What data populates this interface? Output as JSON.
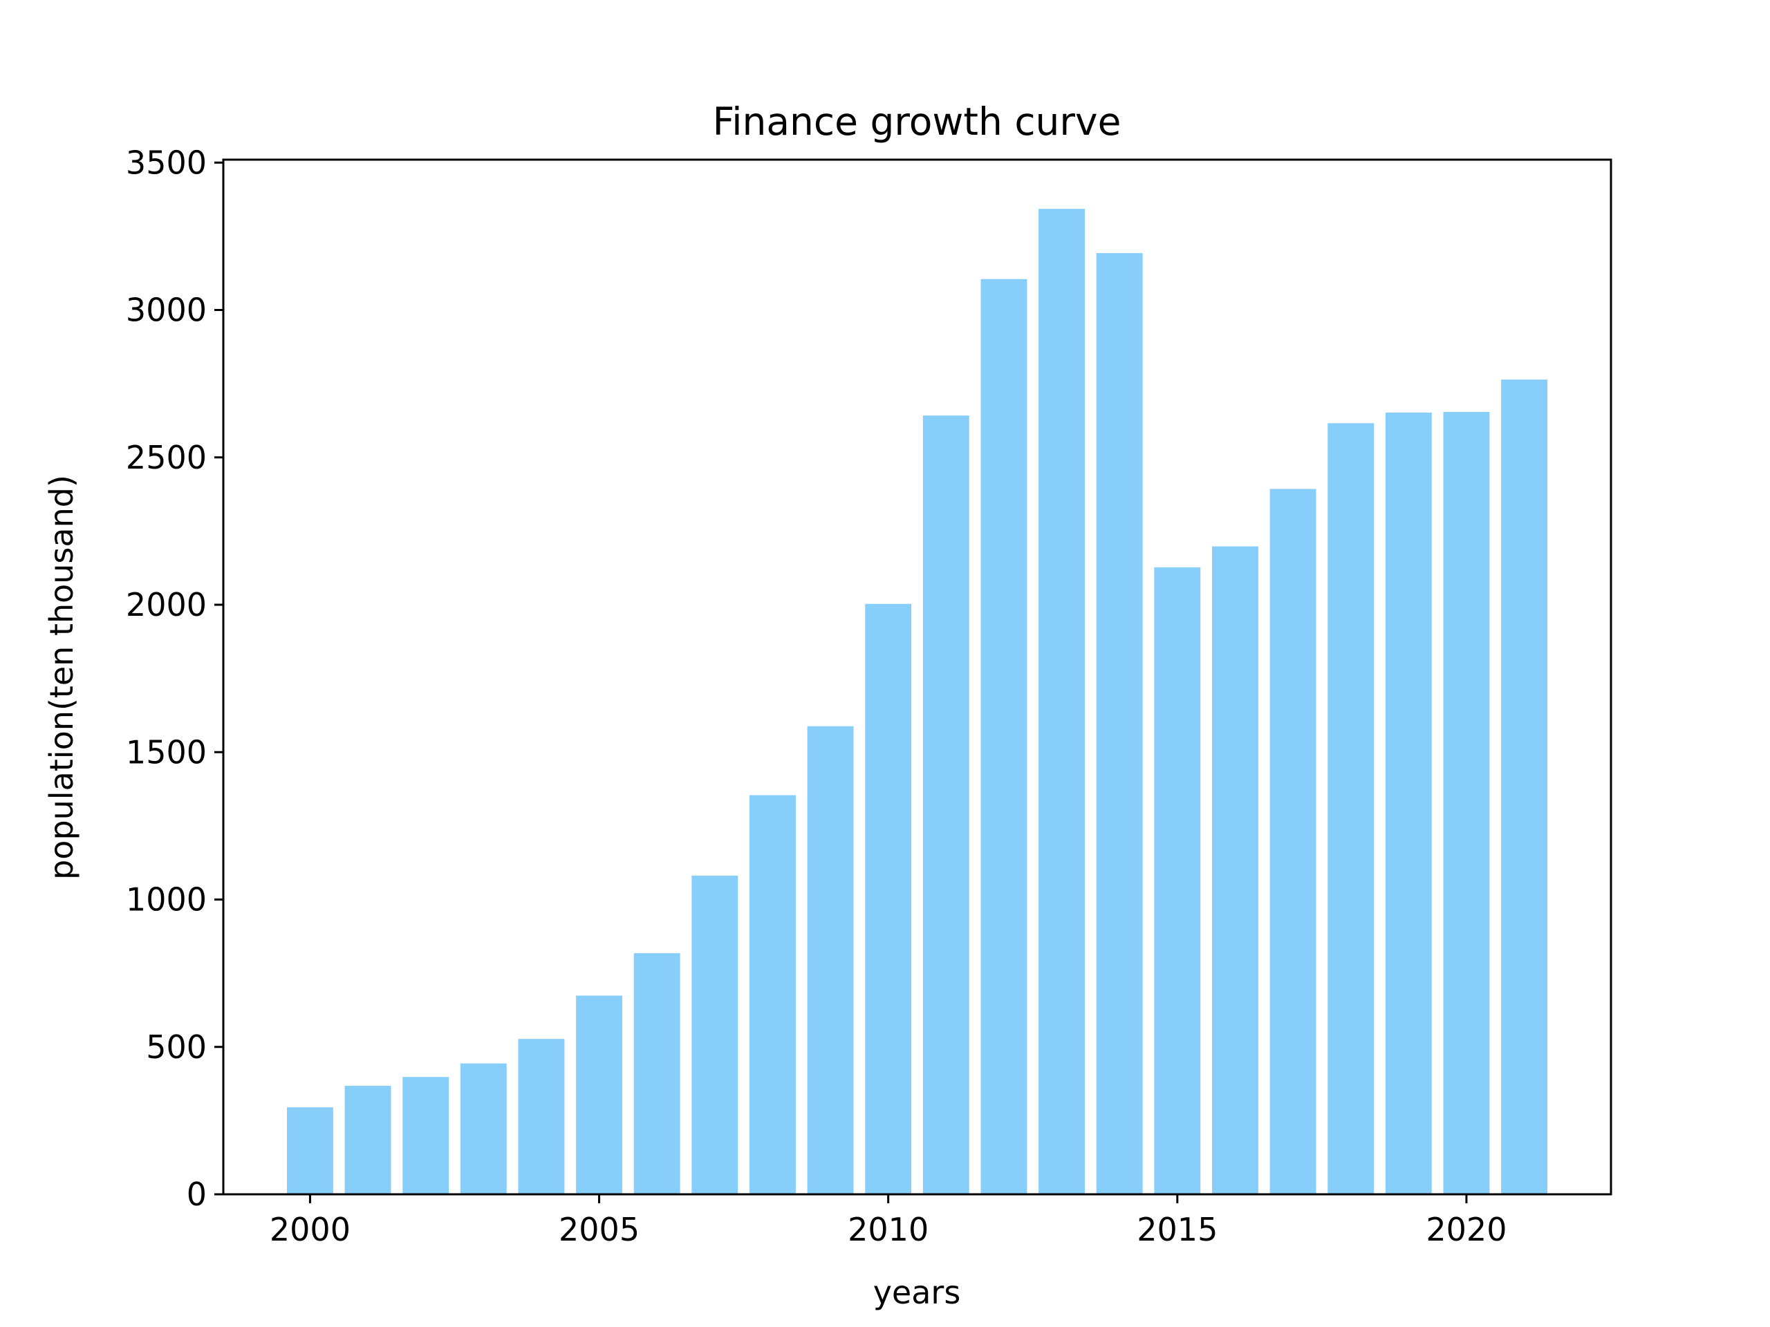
{
  "chart_data": {
    "type": "bar",
    "title": "Finance growth curve",
    "xlabel": "years",
    "ylabel": "population(ten thousand)",
    "categories": [
      2000,
      2001,
      2002,
      2003,
      2004,
      2005,
      2006,
      2007,
      2008,
      2009,
      2010,
      2011,
      2012,
      2013,
      2014,
      2015,
      2016,
      2017,
      2018,
      2019,
      2020,
      2021
    ],
    "values": [
      295,
      368,
      398,
      444,
      527,
      674,
      818,
      1081,
      1354,
      1588,
      2003,
      2642,
      3105,
      3343,
      3193,
      2127,
      2198,
      2393,
      2616,
      2652,
      2654,
      2764
    ],
    "xlim": [
      1998.5,
      2022.5
    ],
    "ylim": [
      0,
      3510
    ],
    "xticks": [
      "2000",
      "2005",
      "2010",
      "2015",
      "2020"
    ],
    "yticks": [
      "0",
      "500",
      "1000",
      "1500",
      "2000",
      "2500",
      "3000",
      "3500"
    ],
    "bar_color": "#87CEFA",
    "grid": false,
    "legend": "none"
  }
}
